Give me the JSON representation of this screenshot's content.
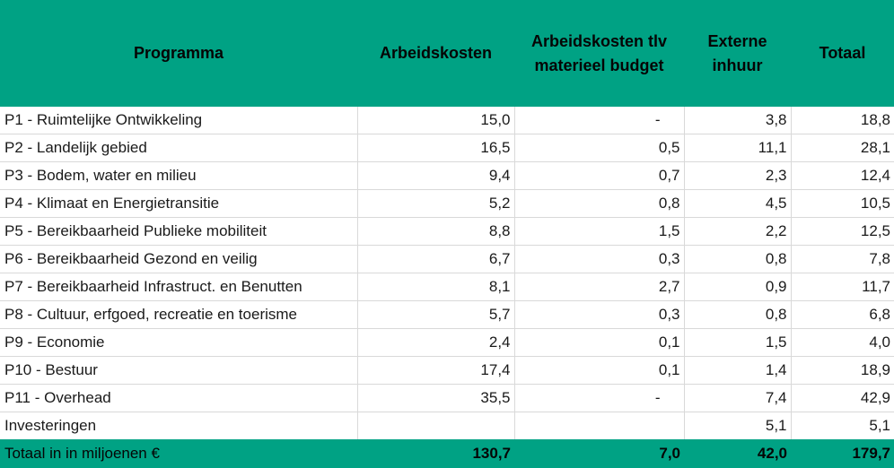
{
  "colors": {
    "accent_teal": "#00A284",
    "grid_line": "#D9D9D9",
    "text": "#1A1A1A"
  },
  "table": {
    "headers": [
      "Programma",
      "Arbeidskosten",
      "Arbeidskosten tlv materieel budget",
      "Externe inhuur",
      "Totaal"
    ],
    "rows": [
      [
        "P1 - Ruimtelijke Ontwikkeling",
        "15,0",
        "-",
        "3,8",
        "18,8"
      ],
      [
        "P2 - Landelijk gebied",
        "16,5",
        "0,5",
        "11,1",
        "28,1"
      ],
      [
        "P3 - Bodem, water en milieu",
        "9,4",
        "0,7",
        "2,3",
        "12,4"
      ],
      [
        "P4 - Klimaat en Energietransitie",
        "5,2",
        "0,8",
        "4,5",
        "10,5"
      ],
      [
        "P5 - Bereikbaarheid Publieke mobiliteit",
        "8,8",
        "1,5",
        "2,2",
        "12,5"
      ],
      [
        "P6 - Bereikbaarheid Gezond en veilig",
        "6,7",
        "0,3",
        "0,8",
        "7,8"
      ],
      [
        "P7 - Bereikbaarheid Infrastruct. en Benutten",
        "8,1",
        "2,7",
        "0,9",
        "11,7"
      ],
      [
        "P8 - Cultuur, erfgoed, recreatie en toerisme",
        "5,7",
        "0,3",
        "0,8",
        "6,8"
      ],
      [
        "P9 - Economie",
        "2,4",
        "0,1",
        "1,5",
        "4,0"
      ],
      [
        "P10 - Bestuur",
        "17,4",
        "0,1",
        "1,4",
        "18,9"
      ],
      [
        "P11 - Overhead",
        "35,5",
        "-",
        "7,4",
        "42,9"
      ],
      [
        "Investeringen",
        "",
        "",
        "5,1",
        "5,1"
      ]
    ],
    "footer": [
      "Totaal in in miljoenen €",
      "130,7",
      "7,0",
      "42,0",
      "179,7"
    ]
  }
}
